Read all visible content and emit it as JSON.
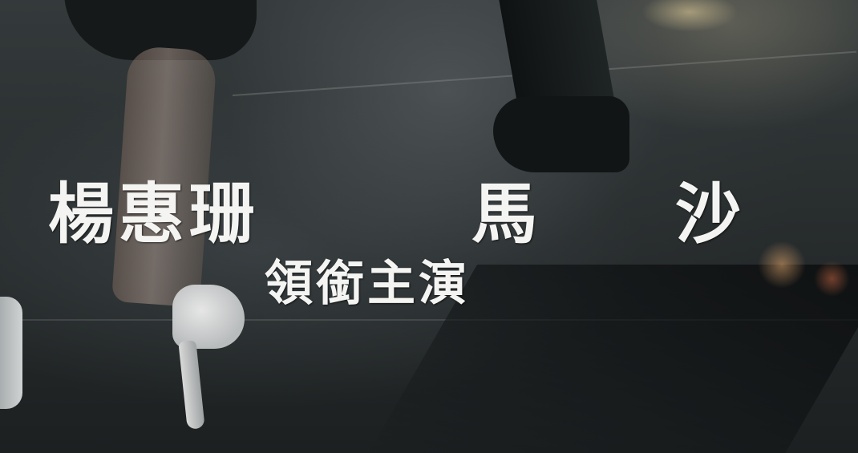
{
  "credits": {
    "names": [
      "楊惠珊",
      "馬",
      "沙"
    ],
    "role": "領銜主演"
  },
  "colors": {
    "text": "#f4f4f2",
    "background": "#2a2f30"
  }
}
